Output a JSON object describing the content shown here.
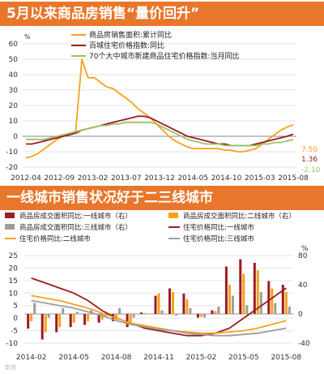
{
  "banner_top": "5月以来商品房销售“量价回升”",
  "banner_bottom": "一线城市销售状况好于二三线城市",
  "watermark": "新浪",
  "chart_data": [
    {
      "type": "line",
      "ylabel": "%",
      "ylim": [
        -20,
        60
      ],
      "yticks": [
        -20,
        -10,
        0,
        10,
        20,
        30,
        40,
        50,
        60
      ],
      "xtick_labels": [
        "2012-04",
        "2012-09",
        "2013-02",
        "2013-07",
        "2013-12",
        "2014-05",
        "2014-10",
        "2015-03",
        "2015-08"
      ],
      "legend_position": "top-center",
      "series": [
        {
          "name": "商品房销售面积:累计同比",
          "color": "#f5a21b",
          "values": [
            -14,
            -13,
            -11,
            -8,
            -5,
            -2,
            0,
            2,
            3,
            50,
            38,
            38,
            35,
            32,
            31,
            28,
            25,
            22,
            18,
            15,
            12,
            8,
            4,
            0,
            -3,
            -5,
            -7,
            -8,
            -8,
            -8,
            -8,
            -8,
            -9,
            -9,
            -10,
            -10,
            -9,
            -8,
            -5,
            -2,
            1,
            4,
            6,
            7.5
          ],
          "end_label": "7.50"
        },
        {
          "name": "百城住宅价格指数:同比",
          "color": "#9e1b21",
          "values": [
            -5,
            -5,
            -4,
            -3,
            -2,
            -1,
            0,
            1,
            2,
            4,
            5,
            6,
            7,
            8,
            9,
            10,
            11,
            12,
            13,
            13,
            12,
            10,
            8,
            6,
            4,
            2,
            0,
            -1,
            -2,
            -3,
            -4,
            -5,
            -5,
            -6,
            -6,
            -6,
            -6,
            -5,
            -4,
            -3,
            -2,
            -1,
            0,
            1.36
          ],
          "end_label": "1.36"
        },
        {
          "name": "70个大中城市新建商品住宅价格指数:当月同比",
          "color": "#9bc266",
          "values": [
            -2,
            -2,
            -2,
            -2,
            -1,
            0,
            1,
            2,
            3,
            4,
            5,
            6,
            7,
            7,
            8,
            8,
            9,
            9,
            9,
            9,
            9,
            8,
            6,
            4,
            2,
            0,
            -2,
            -3,
            -4,
            -5,
            -5,
            -5,
            -6,
            -6,
            -6,
            -6,
            -6,
            -6,
            -5,
            -5,
            -4,
            -4,
            -3,
            -2.1
          ],
          "end_label": "-2.10"
        }
      ]
    },
    {
      "type": "bar",
      "ylim_left": [
        -10,
        25
      ],
      "yticks_left": [
        -10,
        -5,
        0,
        5,
        10,
        15,
        20,
        25
      ],
      "ylabel_right": "%",
      "ylim_right": [
        -40,
        80
      ],
      "yticks_right": [
        -40,
        0,
        40,
        80
      ],
      "xtick_labels": [
        "2014-02",
        "2014-05",
        "2014-08",
        "2014-11",
        "2015-02",
        "2015-05",
        "2015-08"
      ],
      "categories": [
        "2014-02",
        "2014-03",
        "2014-04",
        "2014-05",
        "2014-06",
        "2014-07",
        "2014-08",
        "2014-09",
        "2014-10",
        "2014-11",
        "2014-12",
        "2015-01",
        "2015-02",
        "2015-03",
        "2015-04",
        "2015-05",
        "2015-06",
        "2015-07",
        "2015-08"
      ],
      "legend_position": "top",
      "bar_series": [
        {
          "name": "商品房成交面积同比:一线城市（右）",
          "color": "#9e1b21",
          "axis": "right",
          "values": [
            -20,
            -35,
            -25,
            -18,
            -15,
            -12,
            -10,
            -18,
            2,
            25,
            35,
            28,
            -5,
            5,
            65,
            75,
            70,
            45,
            40
          ]
        },
        {
          "name": "商品房成交面积同比:二线城市（右）",
          "color": "#f5a21b",
          "axis": "right",
          "values": [
            -10,
            -25,
            -18,
            -12,
            -10,
            -8,
            -8,
            -12,
            1,
            28,
            30,
            20,
            -4,
            4,
            40,
            55,
            60,
            35,
            30
          ]
        },
        {
          "name": "商品房成交面积同比:三线城市（右）",
          "color": "#9d9d9d",
          "axis": "right",
          "values": [
            15,
            -5,
            8,
            3,
            5,
            -3,
            8,
            -5,
            0,
            5,
            -2,
            8,
            -5,
            10,
            25,
            12,
            30,
            15,
            10
          ]
        }
      ],
      "line_series": [
        {
          "name": "住宅价格同比:一线城市",
          "color": "#9e1b21",
          "axis": "left",
          "values": [
            16,
            14,
            12,
            10,
            7,
            3,
            0,
            -2,
            -4,
            -5,
            -6,
            -7,
            -7,
            -6,
            -4,
            0,
            4,
            8,
            12
          ]
        },
        {
          "name": "住宅价格同比:二线城市",
          "color": "#f5a21b",
          "axis": "left",
          "values": [
            9,
            8,
            7,
            5.5,
            4,
            2,
            0,
            -2,
            -3,
            -4,
            -5,
            -5.5,
            -6,
            -6,
            -5.5,
            -5,
            -4,
            -2.5,
            -1
          ]
        },
        {
          "name": "住宅价格同比:三线城市",
          "color": "#9d9d9d",
          "axis": "left",
          "values": [
            7,
            6,
            5,
            4,
            2.5,
            1,
            -1,
            -2.5,
            -3.5,
            -4.5,
            -5,
            -6,
            -6.5,
            -7,
            -7,
            -6.5,
            -6,
            -5,
            -4
          ]
        }
      ]
    }
  ]
}
